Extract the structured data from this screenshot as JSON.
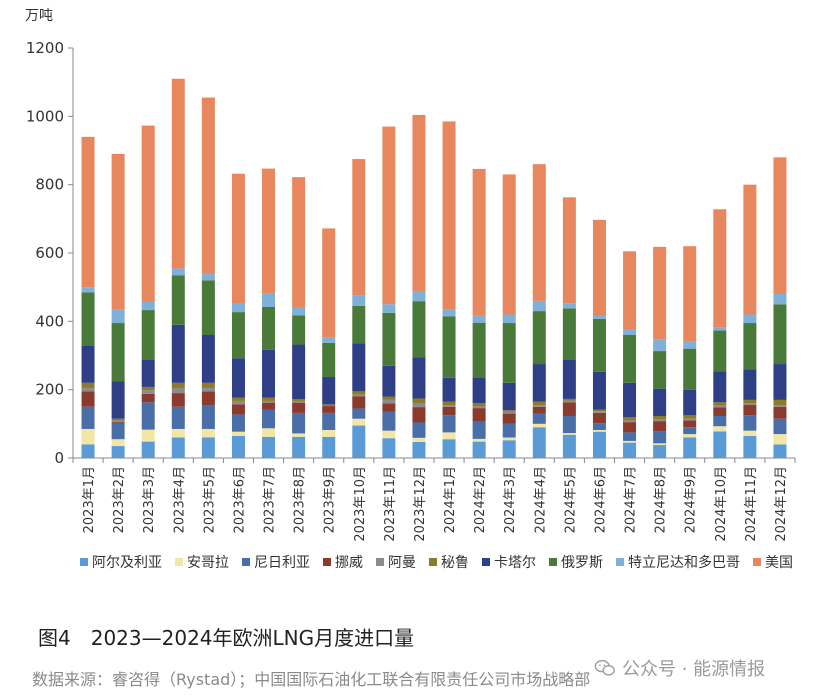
{
  "chart_data": {
    "type": "bar",
    "stacked": true,
    "unit_label": "万吨",
    "ylim": [
      0,
      1200
    ],
    "yticks": [
      0,
      200,
      400,
      600,
      800,
      1000,
      1200
    ],
    "grid": false,
    "legend_position": "bottom",
    "categories": [
      "2023年1月",
      "2023年2月",
      "2023年3月",
      "2023年4月",
      "2023年5月",
      "2023年6月",
      "2023年7月",
      "2023年8月",
      "2023年9月",
      "2023年10月",
      "2023年11月",
      "2023年12月",
      "2024年1月",
      "2024年2月",
      "2024年3月",
      "2024年4月",
      "2024年5月",
      "2024年6月",
      "2024年7月",
      "2024年8月",
      "2024年9月",
      "2024年10月",
      "2024年11月",
      "2024年12月"
    ],
    "series": [
      {
        "name": "阿尔及利亚",
        "color": "#5b9bd5",
        "values": [
          40,
          35,
          48,
          60,
          60,
          65,
          62,
          62,
          62,
          95,
          58,
          47,
          55,
          48,
          52,
          90,
          68,
          77,
          45,
          38,
          60,
          78,
          65,
          40
        ]
      },
      {
        "name": "安哥拉",
        "color": "#f2e5a6",
        "values": [
          45,
          20,
          35,
          25,
          25,
          12,
          25,
          10,
          20,
          20,
          22,
          12,
          20,
          8,
          8,
          10,
          5,
          5,
          5,
          5,
          10,
          15,
          15,
          30
        ]
      },
      {
        "name": "尼日利亚",
        "color": "#4a6fa8",
        "values": [
          65,
          45,
          80,
          65,
          70,
          50,
          55,
          60,
          50,
          30,
          55,
          45,
          50,
          50,
          40,
          30,
          50,
          20,
          25,
          35,
          20,
          30,
          45,
          45
        ]
      },
      {
        "name": "挪威",
        "color": "#8b3a2e",
        "values": [
          45,
          5,
          25,
          40,
          40,
          30,
          20,
          30,
          20,
          35,
          25,
          45,
          25,
          40,
          30,
          20,
          40,
          30,
          30,
          30,
          20,
          25,
          30,
          35
        ]
      },
      {
        "name": "阿曼",
        "color": "#8c8c8c",
        "values": [
          10,
          5,
          10,
          15,
          10,
          10,
          5,
          5,
          0,
          5,
          10,
          10,
          5,
          5,
          5,
          5,
          5,
          5,
          5,
          5,
          5,
          5,
          5,
          5
        ]
      },
      {
        "name": "秘鲁",
        "color": "#8c7a2e",
        "values": [
          15,
          5,
          10,
          15,
          15,
          10,
          10,
          5,
          5,
          10,
          10,
          15,
          10,
          10,
          5,
          10,
          5,
          5,
          10,
          10,
          10,
          10,
          10,
          15
        ]
      },
      {
        "name": "卡塔尔",
        "color": "#2e3f86",
        "values": [
          110,
          110,
          80,
          170,
          140,
          115,
          140,
          160,
          80,
          140,
          90,
          120,
          70,
          75,
          80,
          110,
          115,
          110,
          100,
          80,
          75,
          90,
          90,
          105
        ]
      },
      {
        "name": "俄罗斯",
        "color": "#4a7a3a",
        "values": [
          155,
          170,
          145,
          145,
          160,
          135,
          125,
          85,
          100,
          110,
          155,
          165,
          180,
          160,
          175,
          155,
          150,
          155,
          140,
          110,
          120,
          120,
          135,
          175
        ]
      },
      {
        "name": "特立尼达和多巴哥",
        "color": "#7fb0d8",
        "values": [
          15,
          40,
          25,
          20,
          20,
          25,
          40,
          25,
          15,
          30,
          25,
          30,
          20,
          20,
          25,
          30,
          15,
          10,
          15,
          35,
          20,
          10,
          25,
          30
        ]
      },
      {
        "name": "美国",
        "color": "#e8875e",
        "values": [
          440,
          455,
          515,
          555,
          515,
          380,
          365,
          380,
          320,
          400,
          520,
          515,
          550,
          430,
          410,
          400,
          310,
          280,
          230,
          270,
          280,
          345,
          380,
          400
        ]
      }
    ]
  },
  "caption": "图4　2023—2024年欧洲LNG月度进口量",
  "source": "数据来源：睿咨得（Rystad）；中国国际石油化工联合有限责任公司市场战略部",
  "watermark": "公众号 · 能源情报"
}
